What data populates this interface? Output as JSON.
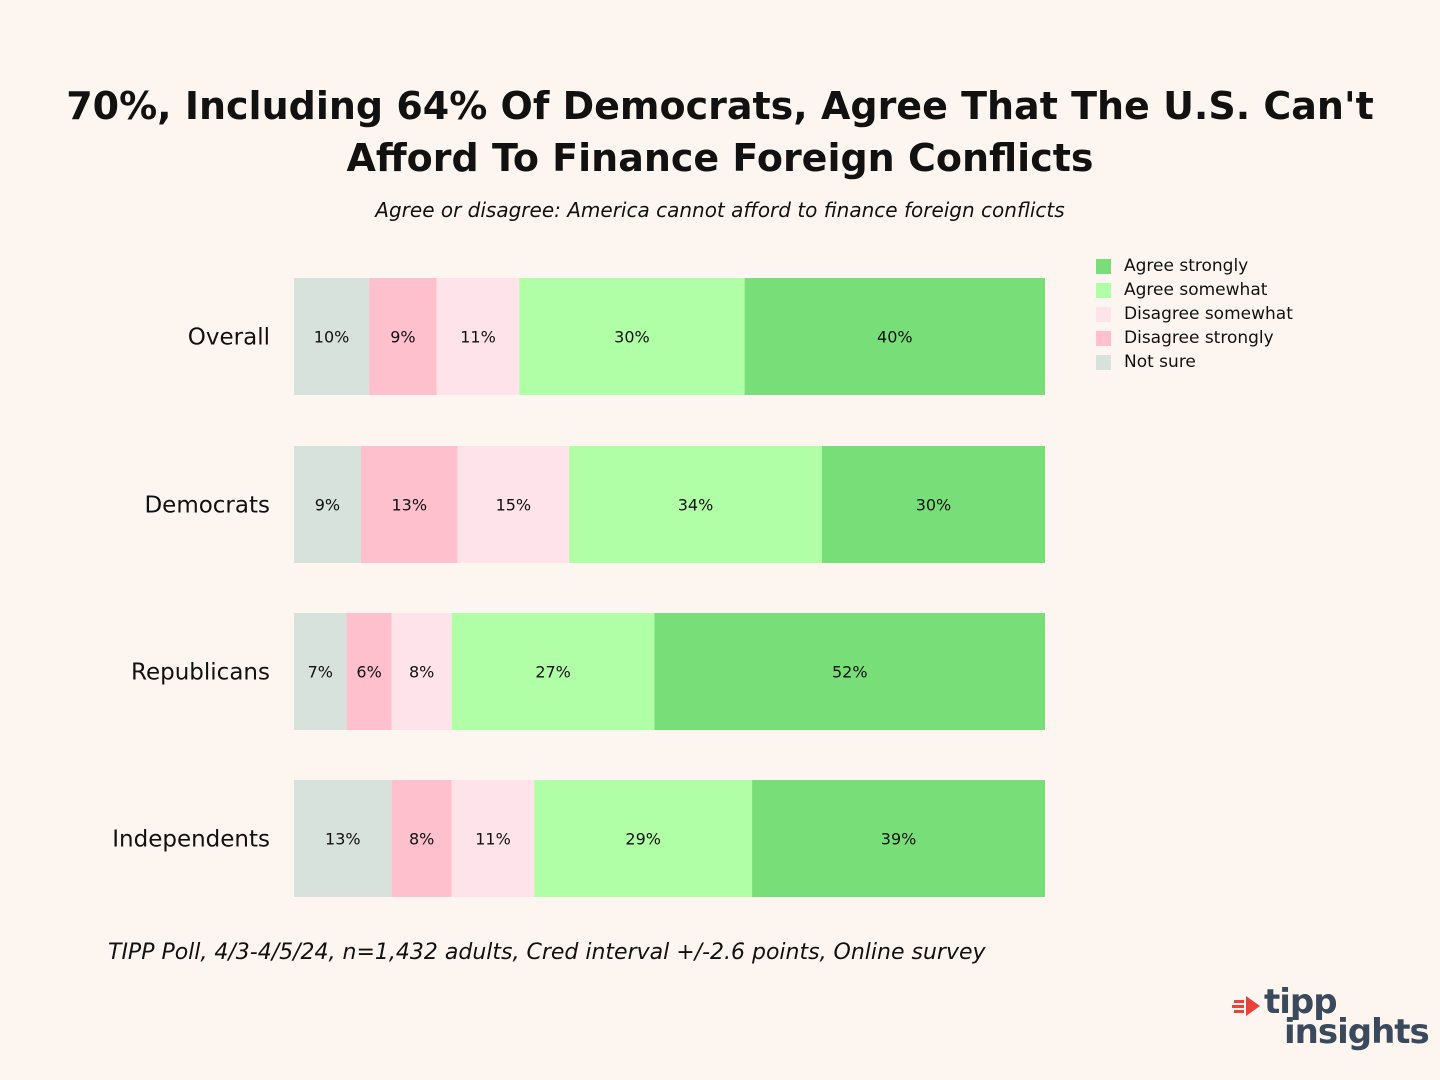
{
  "title_lines": [
    "70%, Including 64% Of Democrats, Agree That The U.S. Can't",
    "Afford To Finance Foreign Conflicts"
  ],
  "subtitle": "Agree or disagree: America cannot afford to finance foreign conflicts",
  "footnote": "TIPP Poll, 4/3-4/5/24, n=1,432 adults, Cred interval +/-2.6 points, Online survey",
  "logo": {
    "word1": "tipp",
    "word2": "insights"
  },
  "colors": {
    "background": "#fdf6f0",
    "agree_strongly": "#78de78",
    "agree_somewhat": "#b0ffa6",
    "disagree_somewhat": "#ffe3ea",
    "disagree_strongly": "#ffc0cd",
    "not_sure": "#d7e2dc",
    "logo_accent": "#e8423b"
  },
  "chart_data": {
    "type": "bar",
    "orientation": "horizontal",
    "stacked": true,
    "title": "70%, Including 64% Of Democrats, Agree That The U.S. Can't Afford To Finance Foreign Conflicts",
    "subtitle": "Agree or disagree: America cannot afford to finance foreign conflicts",
    "categories": [
      "Overall",
      "Democrats",
      "Republicans",
      "Independents"
    ],
    "series": [
      {
        "name": "Not sure",
        "values": [
          10,
          9,
          7,
          13
        ]
      },
      {
        "name": "Disagree strongly",
        "values": [
          9,
          13,
          6,
          8
        ]
      },
      {
        "name": "Disagree somewhat",
        "values": [
          11,
          15,
          8,
          11
        ]
      },
      {
        "name": "Agree somewhat",
        "values": [
          30,
          34,
          27,
          29
        ]
      },
      {
        "name": "Agree strongly",
        "values": [
          40,
          30,
          52,
          39
        ]
      }
    ],
    "data_label_suffix": "%",
    "legend": [
      "Agree strongly",
      "Agree somewhat",
      "Disagree somewhat",
      "Disagree strongly",
      "Not sure"
    ],
    "legend_position": "top-right",
    "xlim": [
      0,
      100
    ],
    "grid": false,
    "xlabel": "",
    "ylabel": ""
  }
}
